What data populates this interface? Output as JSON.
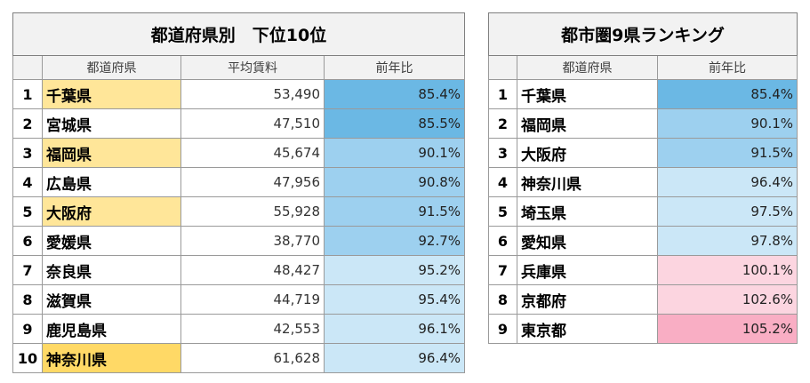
{
  "table1": {
    "title": "都道府県別　下位10位",
    "headers": [
      "都道府県",
      "平均賃料",
      "前年比"
    ],
    "rows": [
      {
        "rank": "1",
        "pref": "千葉県",
        "rent": "53,490",
        "ratio": "85.4%",
        "pref_bg": "#ffe699",
        "ratio_bg": "#6bb8e4"
      },
      {
        "rank": "2",
        "pref": "宮城県",
        "rent": "47,510",
        "ratio": "85.5%",
        "pref_bg": "#ffffff",
        "ratio_bg": "#6bb8e4"
      },
      {
        "rank": "3",
        "pref": "福岡県",
        "rent": "45,674",
        "ratio": "90.1%",
        "pref_bg": "#ffe699",
        "ratio_bg": "#9dd0ef"
      },
      {
        "rank": "4",
        "pref": "広島県",
        "rent": "47,956",
        "ratio": "90.8%",
        "pref_bg": "#ffffff",
        "ratio_bg": "#9dd0ef"
      },
      {
        "rank": "5",
        "pref": "大阪府",
        "rent": "55,928",
        "ratio": "91.5%",
        "pref_bg": "#ffe699",
        "ratio_bg": "#9dd0ef"
      },
      {
        "rank": "6",
        "pref": "愛媛県",
        "rent": "38,770",
        "ratio": "92.7%",
        "pref_bg": "#ffffff",
        "ratio_bg": "#9dd0ef"
      },
      {
        "rank": "7",
        "pref": "奈良県",
        "rent": "48,427",
        "ratio": "95.2%",
        "pref_bg": "#ffffff",
        "ratio_bg": "#cbe7f7"
      },
      {
        "rank": "8",
        "pref": "滋賀県",
        "rent": "44,719",
        "ratio": "95.4%",
        "pref_bg": "#ffffff",
        "ratio_bg": "#cbe7f7"
      },
      {
        "rank": "9",
        "pref": "鹿児島県",
        "rent": "42,553",
        "ratio": "96.1%",
        "pref_bg": "#ffffff",
        "ratio_bg": "#cbe7f7"
      },
      {
        "rank": "10",
        "pref": "神奈川県",
        "rent": "61,628",
        "ratio": "96.4%",
        "pref_bg": "#ffd966",
        "ratio_bg": "#cbe7f7"
      }
    ]
  },
  "table2": {
    "title": "都市圏9県ランキング",
    "headers": [
      "都道府県",
      "前年比"
    ],
    "rows": [
      {
        "rank": "1",
        "pref": "千葉県",
        "ratio": "85.4%",
        "ratio_bg": "#6bb8e4"
      },
      {
        "rank": "2",
        "pref": "福岡県",
        "ratio": "90.1%",
        "ratio_bg": "#9dd0ef"
      },
      {
        "rank": "3",
        "pref": "大阪府",
        "ratio": "91.5%",
        "ratio_bg": "#9dd0ef"
      },
      {
        "rank": "4",
        "pref": "神奈川県",
        "ratio": "96.4%",
        "ratio_bg": "#cbe7f7"
      },
      {
        "rank": "5",
        "pref": "埼玉県",
        "ratio": "97.5%",
        "ratio_bg": "#cbe7f7"
      },
      {
        "rank": "6",
        "pref": "愛知県",
        "ratio": "97.8%",
        "ratio_bg": "#cbe7f7"
      },
      {
        "rank": "7",
        "pref": "兵庫県",
        "ratio": "100.1%",
        "ratio_bg": "#fcd5e0"
      },
      {
        "rank": "8",
        "pref": "京都府",
        "ratio": "102.6%",
        "ratio_bg": "#fcd5e0"
      },
      {
        "rank": "9",
        "pref": "東京都",
        "ratio": "105.2%",
        "ratio_bg": "#f9aec4"
      }
    ]
  }
}
